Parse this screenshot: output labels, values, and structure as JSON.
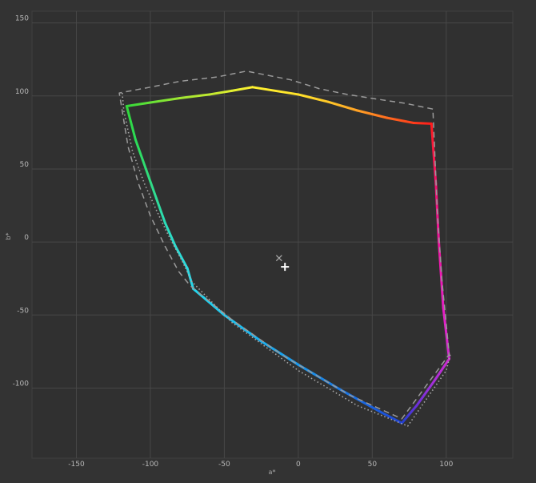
{
  "chart_data": {
    "type": "line",
    "xlabel": "a*",
    "ylabel": "b*",
    "xlim": [
      -180,
      145
    ],
    "ylim": [
      -148,
      158
    ],
    "x_ticks": [
      "-150",
      "-100",
      "-50",
      "0",
      "50",
      "100"
    ],
    "y_ticks": [
      "150",
      "100",
      "50",
      "0",
      "-50",
      "-100"
    ],
    "grid": true,
    "series": [
      {
        "style": "gradient-solid",
        "hue_order": [
          "red",
          "yellow",
          "green",
          "cyan",
          "blue",
          "magenta",
          "red"
        ],
        "points": [
          [
            90,
            81
          ],
          [
            78,
            81.5
          ],
          [
            60,
            85
          ],
          [
            40,
            90
          ],
          [
            20,
            96
          ],
          [
            0,
            101
          ],
          [
            -31,
            106
          ],
          [
            -45,
            103.5
          ],
          [
            -60,
            101
          ],
          [
            -80,
            98.5
          ],
          [
            -100,
            95.5
          ],
          [
            -116,
            93
          ],
          [
            -110,
            70
          ],
          [
            -103,
            50
          ],
          [
            -96,
            30
          ],
          [
            -90,
            13
          ],
          [
            -83,
            -3
          ],
          [
            -75,
            -18
          ],
          [
            -71,
            -32
          ],
          [
            -50,
            -50
          ],
          [
            -25,
            -68
          ],
          [
            0,
            -84
          ],
          [
            30,
            -102
          ],
          [
            55,
            -116
          ],
          [
            70,
            -124
          ],
          [
            80,
            -112
          ],
          [
            92,
            -95
          ],
          [
            102,
            -80
          ],
          [
            98,
            -45
          ],
          [
            95,
            0
          ],
          [
            93,
            40
          ],
          [
            90,
            81
          ]
        ],
        "colors": [
          "#ff1b1b",
          "#ff3c1b",
          "#ff6c1e",
          "#ffa226",
          "#ffc828",
          "#ffe22a",
          "#fff230",
          "#e0ee30",
          "#c0ea30",
          "#a0e632",
          "#64e236",
          "#32d83a",
          "#2cdc56",
          "#30dc74",
          "#30dc96",
          "#2cdcb8",
          "#2cdcd0",
          "#2cdae0",
          "#22d8ee",
          "#1cc8f0",
          "#1ab0f0",
          "#1898ee",
          "#1a78e4",
          "#1a58d8",
          "#2040d0",
          "#6a30d8",
          "#a830d8",
          "#d028d0",
          "#e81cc4",
          "#f016a0",
          "#f21270",
          "#ff1b1b"
        ]
      },
      {
        "style": "dashed",
        "points": [
          [
            91,
            91
          ],
          [
            72,
            95
          ],
          [
            52,
            98
          ],
          [
            33,
            101
          ],
          [
            14,
            105
          ],
          [
            -5,
            111
          ],
          [
            -35,
            117
          ],
          [
            -55,
            113
          ],
          [
            -80,
            110
          ],
          [
            -100,
            106
          ],
          [
            -121,
            102
          ],
          [
            -115,
            65
          ],
          [
            -108,
            40
          ],
          [
            -100,
            18
          ],
          [
            -90,
            -3
          ],
          [
            -81,
            -20
          ],
          [
            -73,
            -30
          ],
          [
            -45,
            -53
          ],
          [
            -10,
            -78
          ],
          [
            35,
            -105
          ],
          [
            70,
            -121
          ],
          [
            102,
            -77
          ],
          [
            97,
            -25
          ],
          [
            94,
            20
          ],
          [
            91,
            91
          ]
        ]
      },
      {
        "style": "dotted",
        "points": [
          [
            -119,
            102
          ],
          [
            -118,
            90
          ],
          [
            -112,
            62
          ],
          [
            -104,
            40
          ],
          [
            -96,
            22
          ],
          [
            -88,
            5
          ],
          [
            -78,
            -14
          ],
          [
            -72,
            -27
          ],
          [
            -45,
            -55
          ],
          [
            0,
            -88
          ],
          [
            40,
            -112
          ],
          [
            74,
            -126
          ],
          [
            100,
            -88
          ],
          [
            103,
            -76
          ]
        ]
      }
    ],
    "annotations": [
      {
        "marker": "x",
        "x": -13,
        "y": -11
      },
      {
        "marker": "+",
        "x": -9,
        "y": -17
      }
    ]
  }
}
